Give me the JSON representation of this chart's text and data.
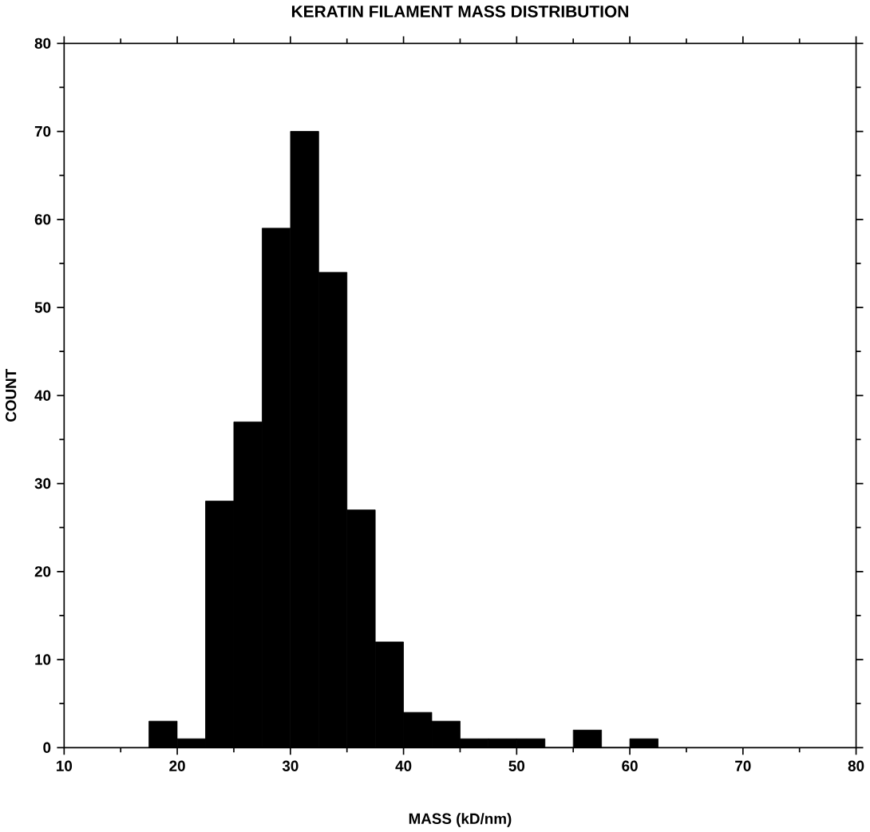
{
  "chart_data": {
    "type": "histogram",
    "title": "KERATIN FILAMENT MASS DISTRIBUTION",
    "xlabel": "MASS (kD/nm)",
    "ylabel": "COUNT",
    "bins": [
      17.5,
      20,
      22.5,
      25,
      27.5,
      30,
      32.5,
      35,
      37.5,
      40,
      42.5,
      45,
      47.5,
      50,
      52.5,
      55,
      57.5,
      60,
      62.5
    ],
    "values": [
      3,
      1,
      28,
      37,
      59,
      70,
      54,
      27,
      12,
      4,
      3,
      1,
      1,
      1,
      0,
      2,
      0,
      1
    ],
    "color": "#000000",
    "xlim": [
      10,
      80
    ],
    "ylim": [
      0,
      80
    ],
    "xticks": [
      10,
      20,
      30,
      40,
      50,
      60,
      70,
      80
    ],
    "yticks": [
      0,
      10,
      20,
      30,
      40,
      50,
      60,
      70,
      80
    ],
    "grid": false
  }
}
